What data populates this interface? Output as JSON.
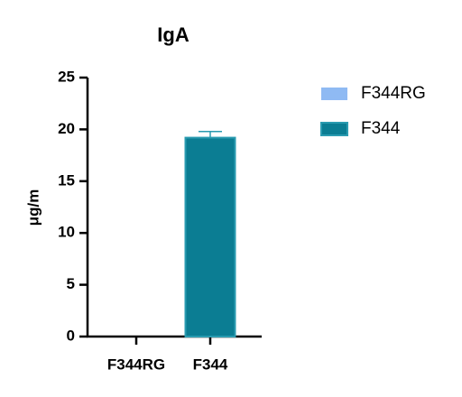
{
  "chart_data": {
    "type": "bar",
    "title": "IgA",
    "y_label": "μg/m",
    "categories": [
      "F344RG",
      "F344"
    ],
    "series": [
      {
        "name": "F344RG",
        "color": "#8fbaf3",
        "values": [
          0,
          null
        ]
      },
      {
        "name": "F344",
        "color": "#0b7d93",
        "values": [
          null,
          19.2
        ],
        "errors": [
          null,
          0.6
        ]
      }
    ],
    "ylim": [
      0,
      25
    ],
    "yticks": [
      0,
      5,
      10,
      15,
      20,
      25
    ]
  }
}
